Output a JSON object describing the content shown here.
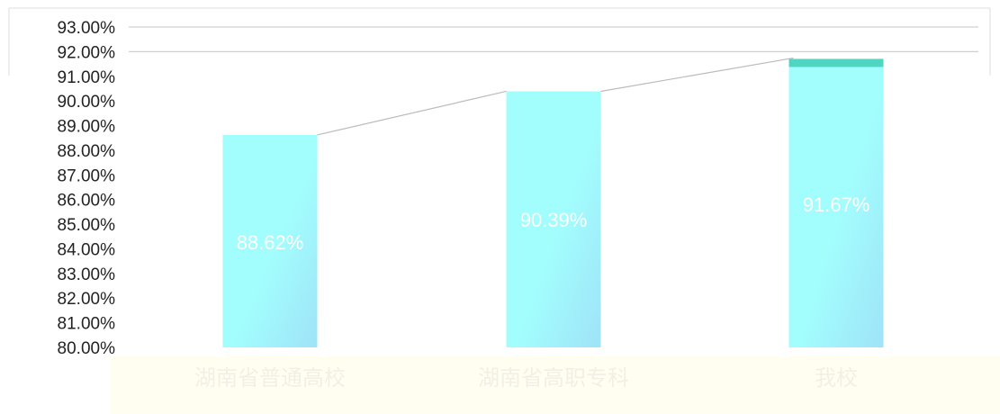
{
  "chart_data": {
    "type": "bar",
    "categories": [
      "湖南省普通高校",
      "湖南省高职专科",
      "我校"
    ],
    "values": [
      88.62,
      90.39,
      91.67
    ],
    "data_labels": [
      "88.62%",
      "90.39%",
      "91.67%"
    ],
    "y_ticks": [
      "80.00%",
      "81.00%",
      "82.00%",
      "83.00%",
      "84.00%",
      "85.00%",
      "86.00%",
      "87.00%",
      "88.00%",
      "89.00%",
      "90.00%",
      "91.00%",
      "92.00%",
      "93.00%"
    ],
    "ylim": [
      80,
      93
    ],
    "grid": true,
    "title": "",
    "xlabel": "",
    "ylabel": "",
    "colors": {
      "bar_top": "#a2fdfd",
      "bar_bottom": "#9fe3f8",
      "highlight": "#4fd6c2",
      "data_label": "#ffffff",
      "category_label": "#f2f0e6",
      "tick_label": "#222222",
      "gridline": "#d0d0d0",
      "connector": "#bbbbbb"
    }
  }
}
